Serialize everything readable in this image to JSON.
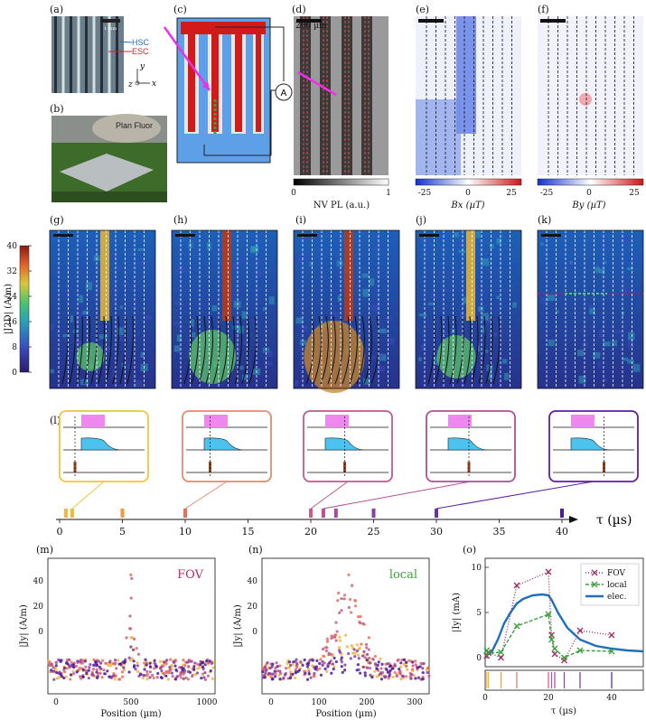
{
  "panel_labels": [
    "(a)",
    "(b)",
    "(c)",
    "(d)",
    "(e)",
    "(f)",
    "(g)",
    "(h)",
    "(i)",
    "(j)",
    "(k)",
    "(l)",
    "(m)",
    "(n)",
    "(o)"
  ],
  "photo_a": {
    "scale": "1 mm",
    "hsc": "HSC",
    "esc": "ESC",
    "axes": {
      "y": "y",
      "x": "x",
      "z": "z"
    }
  },
  "photo_b": {
    "text": "Plan Fluor"
  },
  "circuit_c": {
    "ammeter": "A"
  },
  "image_d": {
    "scale": "200 µm",
    "cbar_label": "NV PL (a.u.)",
    "cbar_ticks": [
      "0",
      "1"
    ]
  },
  "image_e": {
    "cbar_label": "Bx (µT)",
    "cbar_ticks": [
      "-25",
      "0",
      "25"
    ]
  },
  "image_f": {
    "cbar_label": "By (µT)",
    "cbar_ticks": [
      "-25",
      "0",
      "25"
    ]
  },
  "current_maps": {
    "ylabel": "|J2D|  (A/m)",
    "cbar_ticks": [
      "0",
      "8",
      "16",
      "24",
      "32",
      "40"
    ]
  },
  "timeline": {
    "xlabel": "τ  (µs)",
    "ticks": [
      "0",
      "5",
      "10",
      "15",
      "20",
      "25",
      "30",
      "35",
      "40"
    ],
    "marker_values": [
      0.5,
      1,
      5,
      10,
      20,
      21,
      22,
      25,
      30,
      40
    ],
    "marker_colors": [
      "#f5b63c",
      "#f5b63c",
      "#ef9a3e",
      "#e6705c",
      "#c85a86",
      "#b85092",
      "#a24c9a",
      "#8a3fa5",
      "#6f2fa8",
      "#4b1d96"
    ],
    "callout_delays": [
      1,
      10,
      20,
      21,
      30
    ],
    "callout_colors": [
      "#f2c53d",
      "#e58a6f",
      "#c4588c",
      "#b04f93",
      "#5b1fa2"
    ]
  },
  "colors": {
    "accent_magenta": "#b0306a",
    "accent_green": "#3aa03a",
    "accent_blue": "#1f6fbf"
  },
  "panel_m": {
    "title": "FOV",
    "xlabel": "Position (µm)",
    "ylabel": "|Jy| (A/m)",
    "xticks": [
      "0",
      "500",
      "1000"
    ],
    "yticks": [
      "0",
      "20",
      "40"
    ]
  },
  "panel_n": {
    "title": "local",
    "xlabel": "Position (µm)",
    "ylabel": "|Jy| (A/m)",
    "xticks": [
      "0",
      "100",
      "200",
      "300"
    ],
    "yticks": [
      "0",
      "20",
      "40"
    ]
  },
  "chart_data": {
    "type": "line",
    "xlabel": "τ (µs)",
    "ylabel": "|Iy| (mA)",
    "xlim": [
      0,
      50
    ],
    "ylim": [
      -1,
      11
    ],
    "xticks": [
      "0",
      "20",
      "40"
    ],
    "yticks": [
      "0",
      "5",
      "10"
    ],
    "legend_position": "top-right",
    "series": [
      {
        "name": "FOV",
        "color": "#9c2f6a",
        "x": [
          0.5,
          1,
          5,
          10,
          20,
          21,
          22,
          25,
          30,
          40
        ],
        "y": [
          0.2,
          0.6,
          0.0,
          8.0,
          9.5,
          2.5,
          0.4,
          -0.3,
          3.0,
          2.5
        ]
      },
      {
        "name": "local",
        "color": "#3aa03a",
        "x": [
          0.5,
          1,
          5,
          10,
          20,
          21,
          22,
          25,
          30,
          40
        ],
        "y": [
          0.8,
          0.5,
          0.6,
          3.5,
          4.8,
          2.0,
          1.0,
          0.0,
          0.8,
          0.7
        ]
      },
      {
        "name": "elec.",
        "color": "#1f6fbf",
        "x": [
          0,
          2,
          4,
          6,
          8,
          10,
          12,
          15,
          18,
          20,
          21,
          23,
          26,
          30,
          35,
          40,
          45,
          50
        ],
        "y": [
          0.2,
          0.6,
          2.0,
          3.8,
          5.0,
          6.0,
          6.5,
          6.9,
          7.0,
          6.9,
          6.4,
          5.0,
          3.3,
          2.0,
          1.3,
          1.0,
          0.8,
          0.7
        ]
      }
    ]
  }
}
